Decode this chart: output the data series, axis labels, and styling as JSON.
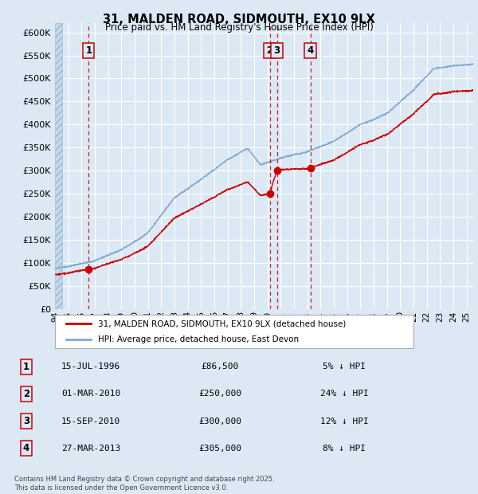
{
  "title": "31, MALDEN ROAD, SIDMOUTH, EX10 9LX",
  "subtitle": "Price paid vs. HM Land Registry's House Price Index (HPI)",
  "ylim": [
    0,
    620000
  ],
  "yticks": [
    0,
    50000,
    100000,
    150000,
    200000,
    250000,
    300000,
    350000,
    400000,
    450000,
    500000,
    550000,
    600000
  ],
  "ytick_labels": [
    "£0",
    "£50K",
    "£100K",
    "£150K",
    "£200K",
    "£250K",
    "£300K",
    "£350K",
    "£400K",
    "£450K",
    "£500K",
    "£550K",
    "£600K"
  ],
  "background_color": "#dce9f5",
  "grid_color": "#ffffff",
  "red_line_color": "#cc0000",
  "blue_line_color": "#80aad0",
  "marker_color": "#cc0000",
  "dashed_line_color": "#cc0000",
  "transactions": [
    {
      "num": 1,
      "date": "15-JUL-1996",
      "price": 86500,
      "year": 1996.54,
      "pct": "5%",
      "dir": "↓"
    },
    {
      "num": 2,
      "date": "01-MAR-2010",
      "price": 250000,
      "year": 2010.17,
      "pct": "24%",
      "dir": "↓"
    },
    {
      "num": 3,
      "date": "15-SEP-2010",
      "price": 300000,
      "year": 2010.71,
      "pct": "12%",
      "dir": "↓"
    },
    {
      "num": 4,
      "date": "27-MAR-2013",
      "price": 305000,
      "year": 2013.23,
      "pct": "8%",
      "dir": "↓"
    }
  ],
  "legend_line1": "31, MALDEN ROAD, SIDMOUTH, EX10 9LX (detached house)",
  "legend_line2": "HPI: Average price, detached house, East Devon",
  "footer": "Contains HM Land Registry data © Crown copyright and database right 2025.\nThis data is licensed under the Open Government Licence v3.0.",
  "x_start": 1994.0,
  "x_end": 2025.5,
  "xticks": [
    1994,
    1995,
    1996,
    1997,
    1998,
    1999,
    2000,
    2001,
    2002,
    2003,
    2004,
    2005,
    2006,
    2007,
    2008,
    2009,
    2010,
    2011,
    2012,
    2013,
    2014,
    2015,
    2016,
    2017,
    2018,
    2019,
    2020,
    2021,
    2022,
    2023,
    2024,
    2025
  ]
}
